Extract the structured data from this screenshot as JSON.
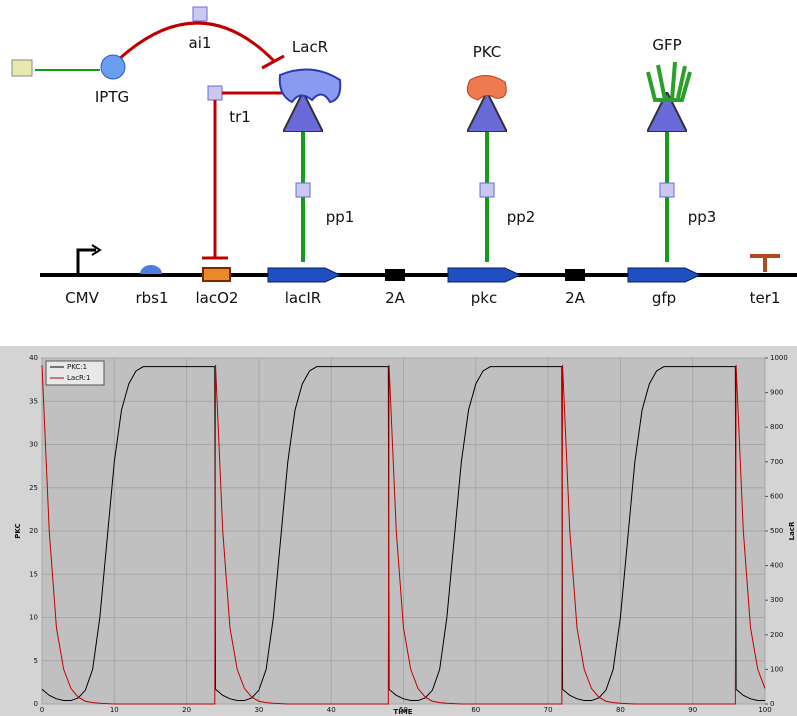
{
  "diagram": {
    "labels": {
      "ai1": "ai1",
      "lacr_protein": "LacR",
      "iptg": "IPTG",
      "tr1": "tr1",
      "pkc_protein": "PKC",
      "gfp_protein": "GFP",
      "pp1": "pp1",
      "pp2": "pp2",
      "pp3": "pp3",
      "cmv": "CMV",
      "rbs1": "rbs1",
      "laco2": "lacO2",
      "lacir": "lacIR",
      "2a_1": "2A",
      "pkc": "pkc",
      "2a_2": "2A",
      "gfp": "gfp",
      "ter1": "ter1"
    }
  },
  "chart_data": {
    "type": "line",
    "x_label": "TIME",
    "y_label": "PKC",
    "y2_label": "LacR",
    "x": [
      0,
      1,
      2,
      3,
      4,
      5,
      6,
      7,
      8,
      9,
      10,
      11,
      12,
      13,
      14,
      18,
      23.9,
      24,
      25,
      26,
      27,
      28,
      29,
      30,
      31,
      32,
      33,
      34,
      35,
      36,
      37,
      38,
      42,
      47.9,
      48,
      49,
      50,
      51,
      52,
      53,
      54,
      55,
      56,
      57,
      58,
      59,
      60,
      61,
      62,
      66,
      71.9,
      72,
      73,
      74,
      75,
      76,
      77,
      78,
      79,
      80,
      81,
      82,
      83,
      84,
      85,
      86,
      90,
      95.9,
      96,
      97,
      98,
      99,
      100
    ],
    "series": [
      {
        "name": "PKC:1",
        "color": "#000000",
        "axis": "y",
        "values": [
          1.7,
          1.0,
          0.6,
          0.4,
          0.4,
          0.7,
          1.6,
          4,
          10,
          19,
          28,
          34,
          37,
          38.5,
          39,
          39,
          39,
          1.7,
          1.0,
          0.6,
          0.4,
          0.4,
          0.7,
          1.6,
          4,
          10,
          19,
          28,
          34,
          37,
          38.5,
          39,
          39,
          39,
          1.7,
          1.0,
          0.6,
          0.4,
          0.4,
          0.7,
          1.6,
          4,
          10,
          19,
          28,
          34,
          37,
          38.5,
          39,
          39,
          39,
          1.7,
          1.0,
          0.6,
          0.4,
          0.4,
          0.7,
          1.6,
          4,
          10,
          19,
          28,
          34,
          37,
          38.5,
          39,
          39,
          39,
          1.7,
          1.0,
          0.6,
          0.4,
          0.4
        ]
      },
      {
        "name": "LacR:1",
        "color": "#c00000",
        "axis": "y2",
        "values": [
          980,
          500,
          220,
          100,
          45,
          20,
          8,
          4,
          2,
          1,
          0,
          0,
          0,
          0,
          0,
          0,
          0,
          980,
          500,
          220,
          100,
          45,
          20,
          8,
          4,
          2,
          1,
          0,
          0,
          0,
          0,
          0,
          0,
          0,
          980,
          500,
          220,
          100,
          45,
          20,
          8,
          4,
          2,
          1,
          0,
          0,
          0,
          0,
          0,
          0,
          0,
          980,
          500,
          220,
          100,
          45,
          20,
          8,
          4,
          2,
          1,
          0,
          0,
          0,
          0,
          0,
          0,
          0,
          980,
          500,
          220,
          100,
          45
        ]
      }
    ],
    "xlim": [
      0,
      100
    ],
    "xticks": [
      0,
      10,
      20,
      30,
      40,
      50,
      60,
      70,
      80,
      90,
      100
    ],
    "ylim": [
      0,
      40
    ],
    "yticks": [
      0,
      5,
      10,
      15,
      20,
      25,
      30,
      35,
      40
    ],
    "y2lim": [
      0,
      1000
    ],
    "y2ticks": [
      0,
      100,
      200,
      300,
      400,
      500,
      600,
      700,
      800,
      900,
      1000
    ],
    "grid": true,
    "legend": "upper left"
  }
}
